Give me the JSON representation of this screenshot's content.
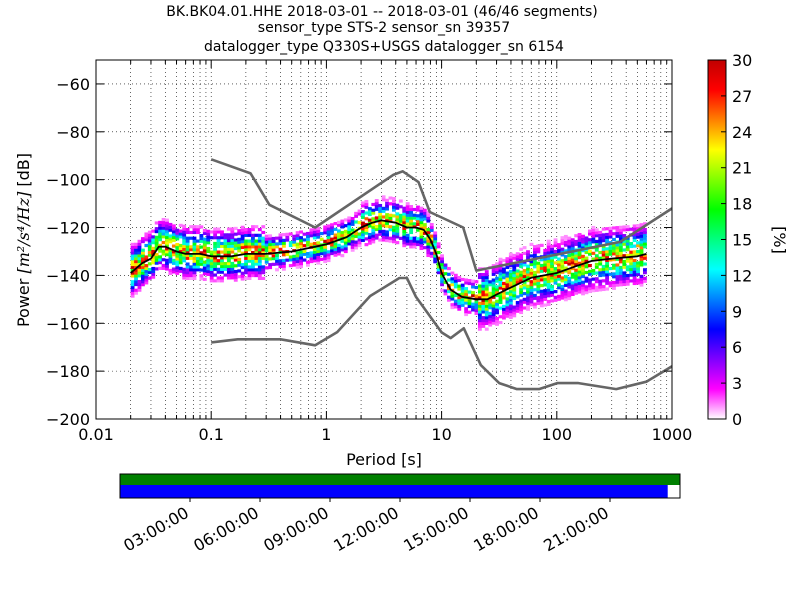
{
  "chart_data": {
    "type": "heatmap",
    "title_lines": [
      "BK.BK04.01.HHE   2018-03-01 -- 2018-03-01  (46/46 segments)",
      "sensor_type STS-2 sensor_sn 39357",
      "datalogger_type Q330S+USGS datalogger_sn 6154"
    ],
    "xlabel": "Period [s]",
    "ylabel_prefix": "Power ",
    "ylabel_units": "[m²/s⁴/Hz]",
    "ylabel_suffix": " [dB]",
    "x_scale": "log",
    "xlim": [
      0.01,
      1000
    ],
    "ylim": [
      -200,
      -50
    ],
    "x_ticks": [
      0.01,
      0.1,
      1,
      10,
      100,
      1000
    ],
    "x_tick_labels": [
      "0.01",
      "0.1",
      "1",
      "10",
      "100",
      "1000"
    ],
    "y_ticks": [
      -200,
      -180,
      -160,
      -140,
      -120,
      -100,
      -80,
      -60
    ],
    "y_tick_labels": [
      "−200",
      "−180",
      "−160",
      "−140",
      "−120",
      "−100",
      "−80",
      "−60"
    ],
    "grid": true,
    "colorbar": {
      "label": "[%]",
      "range": [
        0,
        30
      ],
      "ticks": [
        0,
        3,
        6,
        9,
        12,
        15,
        18,
        21,
        24,
        27,
        30
      ],
      "tick_labels": [
        "0",
        "3",
        "6",
        "9",
        "12",
        "15",
        "18",
        "21",
        "24",
        "27",
        "30"
      ],
      "colors": [
        "#ffffff",
        "#ff00ff",
        "#7f00ff",
        "#0000ff",
        "#0080ff",
        "#00ffff",
        "#00ff80",
        "#00ff00",
        "#80ff00",
        "#ffff00",
        "#ff8000",
        "#ff0000",
        "#c00000"
      ]
    },
    "noise_model_color": "#666666",
    "nhnm": {
      "period": [
        0.1,
        0.22,
        0.32,
        0.8,
        3.8,
        4.6,
        6.3,
        7.9,
        15.4,
        20,
        354.8,
        1000
      ],
      "power": [
        -91.5,
        -97.4,
        -110.5,
        -120,
        -98,
        -96.5,
        -101,
        -113.5,
        -120,
        -138,
        -126,
        -112
      ]
    },
    "nlnm": {
      "period": [
        0.1,
        0.17,
        0.4,
        0.8,
        1.24,
        2.4,
        4.3,
        5,
        6,
        10,
        12,
        15.6,
        21.9,
        31.6,
        45,
        70,
        101,
        154,
        328,
        600,
        1000
      ],
      "power": [
        -168,
        -166.7,
        -166.7,
        -169.2,
        -163.7,
        -148.6,
        -141.1,
        -141.1,
        -149,
        -163.8,
        -166.2,
        -162.1,
        -177.5,
        -185,
        -187.5,
        -187.5,
        -185,
        -185,
        -187.5,
        -184.4,
        -178
      ]
    },
    "mode": {
      "name": "mode",
      "color": "#000000",
      "period": [
        0.02,
        0.025,
        0.03,
        0.035,
        0.04,
        0.05,
        0.06,
        0.08,
        0.1,
        0.15,
        0.2,
        0.3,
        0.5,
        0.8,
        1,
        1.5,
        2,
        2.5,
        3,
        4,
        5,
        6,
        7,
        8,
        9,
        10,
        12,
        15,
        20,
        25,
        30,
        40,
        60,
        100,
        150,
        200,
        300,
        500,
        600
      ],
      "power": [
        -139,
        -135,
        -133,
        -128,
        -128,
        -130,
        -131,
        -131,
        -132,
        -132,
        -131,
        -131,
        -130,
        -128,
        -127,
        -124,
        -120,
        -118,
        -117,
        -118,
        -120,
        -120,
        -121,
        -125,
        -131,
        -139,
        -146,
        -149,
        -150,
        -150,
        -148,
        -145,
        -141,
        -139,
        -136,
        -134,
        -133,
        -132,
        -131
      ]
    },
    "time_axis": {
      "tick_labels": [
        "03:00:00",
        "06:00:00",
        "09:00:00",
        "12:00:00",
        "15:00:00",
        "18:00:00",
        "21:00:00"
      ],
      "top_bar_color": "#008000",
      "bottom_bar_color": "#0000ff",
      "coverage_fraction": 0.978
    }
  }
}
